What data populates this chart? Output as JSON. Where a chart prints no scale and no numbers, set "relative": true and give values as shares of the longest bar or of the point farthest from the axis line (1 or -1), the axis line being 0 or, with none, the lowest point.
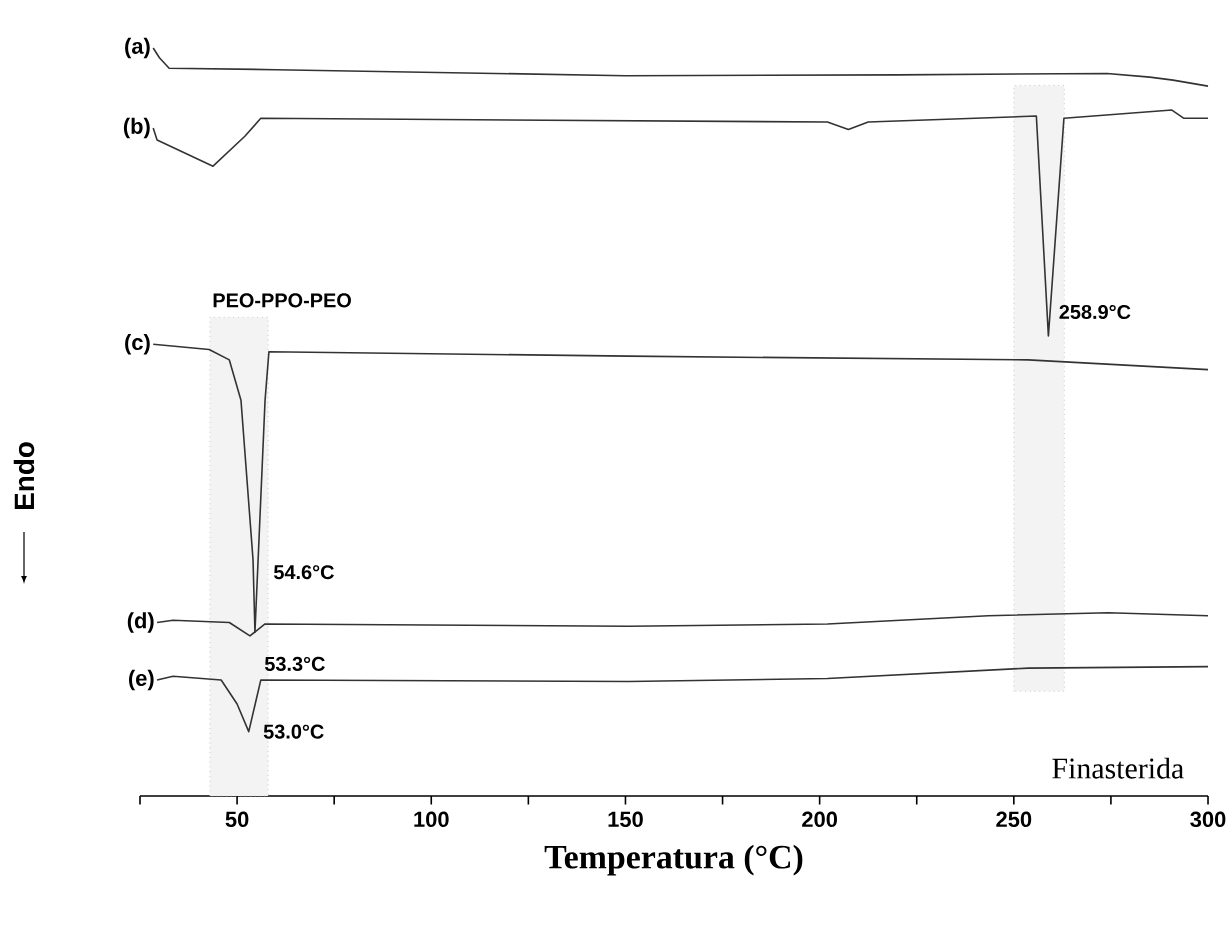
{
  "chart_data": {
    "type": "line",
    "relative": true,
    "xlabel": "Temperatura (°C)",
    "ylabel": "Endo",
    "xlim": [
      25,
      300
    ],
    "xticks": [
      {
        "value": 25,
        "label": null
      },
      50,
      {
        "value": 75,
        "label": null
      },
      100,
      {
        "value": 125,
        "label": null
      },
      150,
      {
        "value": 175,
        "label": null
      },
      200,
      {
        "value": 225,
        "label": null
      },
      250,
      {
        "value": 275,
        "label": null
      },
      300
    ],
    "series": [
      {
        "name": "(a)",
        "color": "#333333",
        "x": [
          28.4,
          30,
          32.5,
          60,
          150,
          220,
          274,
          285,
          291,
          300
        ],
        "values": [
          1.0,
          0.987,
          0.973,
          0.971,
          0.963,
          0.964,
          0.966,
          0.961,
          0.957,
          0.949
        ]
      },
      {
        "name": "(b)",
        "color": "#333333",
        "x": [
          28.4,
          29.4,
          43.8,
          52,
          56.1,
          202,
          207.4,
          212.5,
          255.8,
          258.9,
          262.9,
          290.7,
          293.8,
          300
        ],
        "values": [
          0.893,
          0.877,
          0.842,
          0.882,
          0.906,
          0.901,
          0.891,
          0.901,
          0.909,
          0.615,
          0.906,
          0.917,
          0.906,
          0.906
        ]
      },
      {
        "name": "(c)",
        "color": "#333333",
        "x": [
          28.4,
          42.8,
          48,
          51,
          54.1,
          54.6,
          57.2,
          58.2,
          150.8,
          253.7,
          300
        ],
        "values": [
          0.604,
          0.597,
          0.583,
          0.529,
          0.316,
          0.219,
          0.529,
          0.594,
          0.588,
          0.583,
          0.57
        ]
      },
      {
        "name": "(d)",
        "color": "#333333",
        "x": [
          29.4,
          33.5,
          48,
          53.3,
          57.2,
          150.8,
          202,
          243.4,
          274.3,
          300
        ],
        "values": [
          0.232,
          0.235,
          0.232,
          0.214,
          0.23,
          0.227,
          0.23,
          0.241,
          0.245,
          0.241
        ]
      },
      {
        "name": "(e)",
        "color": "#333333",
        "x": [
          29.4,
          33.5,
          45.9,
          50,
          53.0,
          56.1,
          150.8,
          202,
          253.7,
          300
        ],
        "values": [
          0.155,
          0.16,
          0.155,
          0.123,
          0.086,
          0.155,
          0.153,
          0.157,
          0.171,
          0.173
        ]
      }
    ],
    "annotations": [
      {
        "text": "258.9°C",
        "x": 258.9,
        "y": 0.615
      },
      {
        "text": "54.6°C",
        "x": 54.6,
        "y": 0.219
      },
      {
        "text": "53.3°C",
        "x": 53.3,
        "y": 0.214
      },
      {
        "text": "53.0°C",
        "x": 53.0,
        "y": 0.086
      },
      "Finasterida"
    ],
    "bands": [
      {
        "axis": "x",
        "from": 43,
        "to": 58,
        "label": "PEO-PPO-PEO",
        "color": "#f3f3f3"
      },
      {
        "axis": "x",
        "from": 250,
        "to": 263,
        "color": "#f3f3f3"
      }
    ]
  }
}
